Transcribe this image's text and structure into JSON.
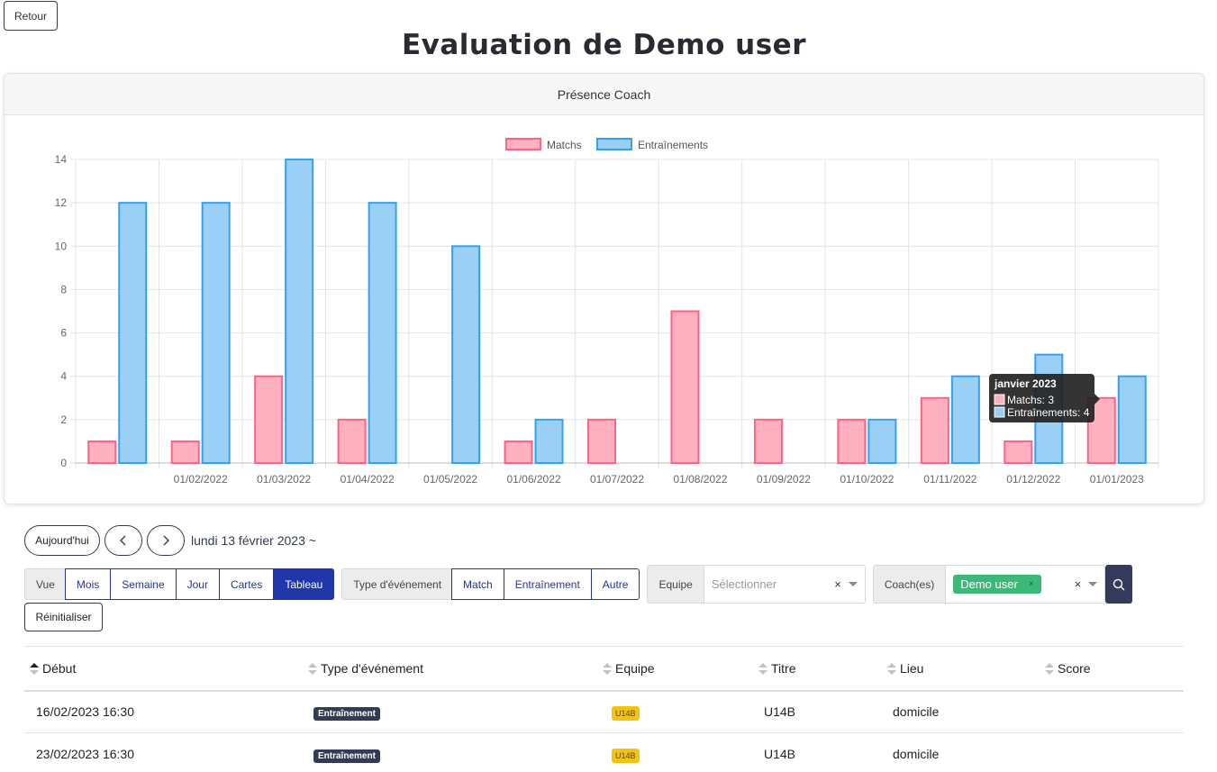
{
  "header": {
    "back_label": "Retour",
    "page_title": "Evaluation de Demo user"
  },
  "card": {
    "title": "Présence Coach"
  },
  "chart_data": {
    "type": "bar",
    "categories": [
      "",
      "01/02/2022",
      "01/03/2022",
      "01/04/2022",
      "01/05/2022",
      "01/06/2022",
      "01/07/2022",
      "01/08/2022",
      "01/09/2022",
      "01/10/2022",
      "01/11/2022",
      "01/12/2022",
      "01/01/2023"
    ],
    "series": [
      {
        "name": "Matchs",
        "values": [
          1,
          1,
          4,
          2,
          0,
          1,
          2,
          7,
          2,
          2,
          3,
          1,
          3
        ],
        "color": "#ff6384",
        "fill": "#ffb1c1"
      },
      {
        "name": "Entraînements",
        "values": [
          12,
          12,
          14,
          12,
          10,
          2,
          0,
          0,
          0,
          2,
          4,
          5,
          4
        ],
        "color": "#36a2eb",
        "fill": "#9ad0f5"
      }
    ],
    "ylim": [
      0,
      14
    ],
    "yticks": [
      "0",
      "2",
      "4",
      "6",
      "8",
      "10",
      "12",
      "14"
    ],
    "legend": "top",
    "grid": true,
    "tooltip": {
      "title": "janvier 2023",
      "lines": [
        "Matchs: 3",
        "Entraînements: 4"
      ]
    }
  },
  "nav": {
    "today": "Aujourd'hui",
    "date_label": "lundi 13 février 2023 ~"
  },
  "filters": {
    "view_label": "Vue",
    "views": [
      "Mois",
      "Semaine",
      "Jour",
      "Cartes",
      "Tableau"
    ],
    "type_label": "Type d'événement",
    "types": [
      "Match",
      "Entraînement",
      "Autre"
    ],
    "team_label": "Equipe",
    "team_placeholder": "Sélectionner",
    "coach_label": "Coach(es)",
    "coach_tag": "Demo user",
    "clear": "×",
    "reset": "Réinitialiser"
  },
  "table": {
    "columns": [
      "Début",
      "Type d'événement",
      "Equipe",
      "Titre",
      "Lieu",
      "Score"
    ],
    "rows": [
      {
        "start": "16/02/2023 16:30",
        "type": "Entraînement",
        "team": "U14B",
        "title": "U14B",
        "place": "domicile",
        "score": ""
      },
      {
        "start": "23/02/2023 16:30",
        "type": "Entraînement",
        "team": "U14B",
        "title": "U14B",
        "place": "domicile",
        "score": ""
      }
    ]
  }
}
